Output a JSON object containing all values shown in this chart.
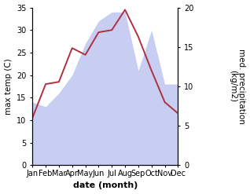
{
  "months": [
    "Jan",
    "Feb",
    "Mar",
    "Apr",
    "May",
    "Jun",
    "Jul",
    "Aug",
    "Sep",
    "Oct",
    "Nov",
    "Dec"
  ],
  "precip_left_scale": [
    14.0,
    13.0,
    16.0,
    20.0,
    27.0,
    32.0,
    34.0,
    34.0,
    21.0,
    30.0,
    18.0,
    18.0
  ],
  "temp_values": [
    10.5,
    18.0,
    18.5,
    26.0,
    24.5,
    29.5,
    30.0,
    34.5,
    28.5,
    21.0,
    14.0,
    11.5
  ],
  "temp_color": "#b03040",
  "precip_fill_color": "#b0baec",
  "precip_fill_alpha": 0.7,
  "left_ylim": [
    0,
    35
  ],
  "right_ylim": [
    0,
    25
  ],
  "left_yticks": [
    0,
    5,
    10,
    15,
    20,
    25,
    30,
    35
  ],
  "right_yticks": [
    0,
    5,
    10,
    15,
    20
  ],
  "xlabel": "date (month)",
  "ylabel_left": "max temp (C)",
  "ylabel_right": "med. precipitation\n(kg/m2)",
  "xlabel_fontsize": 8,
  "ylabel_fontsize": 7.5,
  "tick_fontsize": 7
}
